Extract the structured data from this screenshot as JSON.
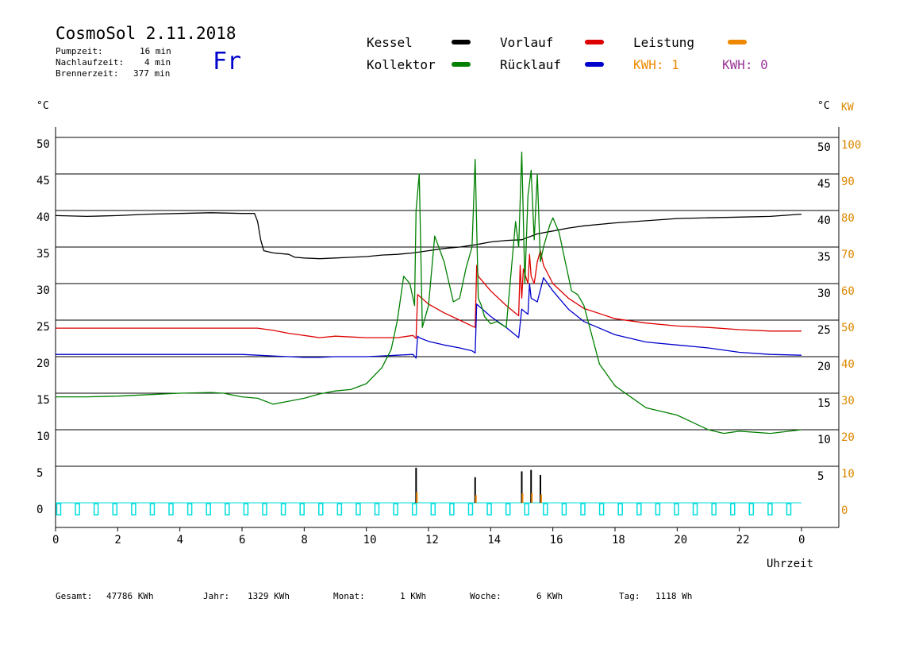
{
  "header": {
    "title": "CosmoSol 2.11.2018",
    "pump_label": "Pumpzeit:",
    "pump_value": "16 min",
    "nachlauf_label": "Nachlaufzeit:",
    "nachlauf_value": "4 min",
    "brenner_label": "Brennerzeit:",
    "brenner_value": "377 min",
    "weekday": "Fr"
  },
  "legend": {
    "kessel": "Kessel",
    "kollektor": "Kollektor",
    "vorlauf": "Vorlauf",
    "ruecklauf": "Rücklauf",
    "leistung": "Leistung",
    "kwh1": "KWH: 1",
    "kwh2": "KWH: 0",
    "colors": {
      "kessel": "#000000",
      "kollektor": "#008000",
      "vorlauf": "#dd0000",
      "ruecklauf": "#0000cc",
      "leistung": "#ee8800",
      "kwh2": "#993399",
      "cyan": "#00dddd"
    }
  },
  "axes": {
    "left_unit": "°C",
    "right_unit": "°C",
    "kw_unit": "KW",
    "xlabel": "Uhrzeit"
  },
  "footer": {
    "gesamt_label": "Gesamt:",
    "gesamt_value": "47786 KWh",
    "jahr_label": "Jahr:",
    "jahr_value": "1329 KWh",
    "monat_label": "Monat:",
    "monat_value": "1 KWh",
    "woche_label": "Woche:",
    "woche_value": "6 KWh",
    "tag_label": "Tag:",
    "tag_value": "1118 Wh"
  },
  "chart_data": {
    "type": "line",
    "xlim": [
      0,
      24
    ],
    "ylim": [
      0,
      50
    ],
    "y_ticks": [
      0,
      5,
      10,
      15,
      20,
      25,
      30,
      35,
      40,
      45,
      50
    ],
    "kw_ticks": [
      "0",
      "10",
      "20",
      "30",
      "40",
      "50",
      "60",
      "70",
      "80",
      "90",
      "100"
    ],
    "x_tick_labels": [
      "0",
      "2",
      "4",
      "6",
      "8",
      "10",
      "12",
      "14",
      "16",
      "18",
      "20",
      "22",
      "0"
    ],
    "grid": "horizontal",
    "series": [
      {
        "name": "Kessel",
        "color": "#000000",
        "x": [
          0,
          1,
          2,
          3,
          4,
          5,
          6,
          6.4,
          6.5,
          6.6,
          6.7,
          7,
          7.5,
          7.7,
          8,
          8.5,
          9,
          9.5,
          10,
          10.5,
          11,
          11.5,
          12,
          12.5,
          13,
          13.5,
          14,
          14.5,
          15,
          15.5,
          16,
          16.5,
          17,
          18,
          19,
          20,
          21,
          22,
          23,
          24
        ],
        "y": [
          39.3,
          39.2,
          39.3,
          39.5,
          39.6,
          39.7,
          39.6,
          39.6,
          38.5,
          36,
          34.5,
          34.2,
          34.0,
          33.6,
          33.5,
          33.4,
          33.5,
          33.6,
          33.7,
          33.9,
          34.0,
          34.2,
          34.5,
          34.8,
          35.0,
          35.3,
          35.7,
          35.9,
          36.0,
          36.8,
          37.2,
          37.6,
          37.9,
          38.3,
          38.6,
          38.9,
          39.0,
          39.1,
          39.2,
          39.5
        ]
      },
      {
        "name": "Vorlauf",
        "color": "#dd0000",
        "x": [
          0,
          1,
          2,
          3,
          4,
          5,
          6,
          6.5,
          7,
          7.5,
          8,
          8.5,
          9,
          9.5,
          10,
          10.5,
          11,
          11.5,
          11.6,
          11.65,
          11.7,
          12,
          12.5,
          13,
          13.4,
          13.5,
          13.55,
          13.6,
          14,
          14.5,
          14.9,
          14.95,
          15.0,
          15.05,
          15.2,
          15.25,
          15.3,
          15.4,
          15.5,
          15.6,
          15.7,
          16,
          16.5,
          17,
          18,
          19,
          20,
          21,
          22,
          23,
          24
        ],
        "y": [
          23.9,
          23.9,
          23.9,
          23.9,
          23.9,
          23.9,
          23.9,
          23.9,
          23.6,
          23.2,
          22.9,
          22.6,
          22.8,
          22.7,
          22.6,
          22.6,
          22.6,
          22.9,
          22.5,
          28.5,
          28.3,
          27.2,
          26.0,
          25.0,
          24.2,
          24.0,
          32.5,
          31.0,
          29.0,
          27.0,
          25.6,
          32.5,
          28.0,
          32.0,
          30.0,
          34.0,
          31.0,
          30.0,
          33.0,
          34.5,
          32.5,
          30.0,
          28.0,
          26.6,
          25.2,
          24.6,
          24.2,
          24.0,
          23.7,
          23.5,
          23.5
        ]
      },
      {
        "name": "Rücklauf",
        "color": "#0000cc",
        "x": [
          0,
          1,
          2,
          3,
          4,
          5,
          6,
          6.5,
          7,
          7.5,
          8,
          8.5,
          9,
          9.5,
          10,
          10.5,
          11,
          11.5,
          11.6,
          11.65,
          11.7,
          12,
          12.5,
          13,
          13.4,
          13.5,
          13.55,
          13.6,
          14,
          14.5,
          14.9,
          15.0,
          15.05,
          15.2,
          15.25,
          15.3,
          15.5,
          15.7,
          16,
          16.5,
          17,
          18,
          19,
          20,
          21,
          22,
          23,
          24
        ],
        "y": [
          20.3,
          20.3,
          20.3,
          20.3,
          20.3,
          20.3,
          20.3,
          20.2,
          20.1,
          20.0,
          19.9,
          19.9,
          20.0,
          20.0,
          20.0,
          20.1,
          20.2,
          20.3,
          19.8,
          22.8,
          22.6,
          22.1,
          21.6,
          21.2,
          20.8,
          20.5,
          27.2,
          27.0,
          25.5,
          24.0,
          22.6,
          26.5,
          26.3,
          25.8,
          30.0,
          28.0,
          27.5,
          30.8,
          29.0,
          26.5,
          24.8,
          23.0,
          22.0,
          21.6,
          21.2,
          20.6,
          20.3,
          20.2
        ]
      },
      {
        "name": "Kollektor",
        "color": "#008000",
        "x": [
          0,
          1,
          2,
          3,
          4,
          5,
          5.4,
          6,
          6.5,
          7,
          7.5,
          8,
          8.5,
          9,
          9.5,
          10,
          10.5,
          10.8,
          11,
          11.2,
          11.4,
          11.55,
          11.6,
          11.7,
          11.8,
          12,
          12.2,
          12.5,
          12.8,
          13.0,
          13.2,
          13.4,
          13.5,
          13.6,
          13.7,
          13.8,
          14,
          14.2,
          14.5,
          14.8,
          14.9,
          15.0,
          15.1,
          15.2,
          15.3,
          15.4,
          15.5,
          15.6,
          15.7,
          15.9,
          16.0,
          16.2,
          16.4,
          16.6,
          16.8,
          17,
          17.5,
          18,
          19,
          20,
          20.5,
          21,
          21.5,
          22,
          23,
          24
        ],
        "y": [
          14.5,
          14.5,
          14.6,
          14.8,
          15.0,
          15.1,
          15.0,
          14.5,
          14.3,
          13.5,
          13.9,
          14.3,
          14.9,
          15.3,
          15.5,
          16.3,
          18.5,
          21.0,
          25.0,
          31.0,
          30.0,
          27.0,
          40.0,
          45.0,
          24.0,
          27.0,
          36.5,
          33.0,
          27.5,
          28.0,
          32.0,
          35.0,
          47.0,
          28.0,
          27.0,
          25.5,
          24.5,
          24.8,
          24.0,
          38.5,
          35.0,
          48.0,
          30.0,
          42.0,
          45.5,
          36.0,
          45.0,
          33.0,
          35.0,
          38.0,
          39.0,
          37.0,
          33.0,
          29.0,
          28.5,
          27.0,
          19.0,
          16.0,
          13.0,
          12.0,
          11.0,
          10.0,
          9.5,
          9.8,
          9.5,
          10.0
        ]
      },
      {
        "name": "Leistung",
        "color": "#ee8800",
        "x": [
          11.6,
          13.5,
          15.0,
          15.3,
          15.6
        ],
        "y": [
          4.8,
          3.5,
          4.3,
          4.5,
          3.8
        ]
      }
    ],
    "kwh_cyan_marks": 40
  }
}
